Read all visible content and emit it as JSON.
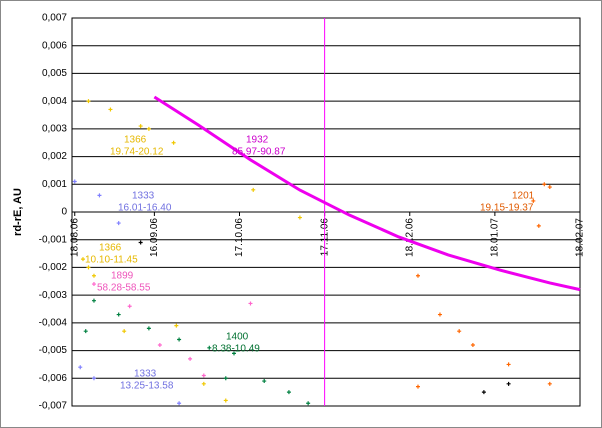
{
  "chart_data": {
    "type": "scatter",
    "y_label": "rd-rE, AU",
    "ylim": [
      -0.007,
      0.007
    ],
    "yticks": [
      {
        "value": -0.007,
        "label": "-0,007"
      },
      {
        "value": -0.006,
        "label": "-0,006"
      },
      {
        "value": -0.005,
        "label": "-0,005"
      },
      {
        "value": -0.004,
        "label": "-0,004"
      },
      {
        "value": -0.003,
        "label": "-0,003"
      },
      {
        "value": -0.002,
        "label": "-0,002"
      },
      {
        "value": -0.001,
        "label": "-0,001"
      },
      0,
      {
        "value": 0.001,
        "label": "0,001"
      },
      {
        "value": 0.002,
        "label": "0,002"
      },
      {
        "value": 0.003,
        "label": "0,003"
      },
      {
        "value": 0.004,
        "label": "0,004"
      },
      {
        "value": 0.005,
        "label": "0,005"
      },
      {
        "value": 0.006,
        "label": "0,006"
      },
      {
        "value": 0.007,
        "label": "0,007"
      }
    ],
    "xlim": [
      "2006-08-17",
      "2007-02-18"
    ],
    "xticks": [
      {
        "value": "2006-08-18",
        "label": "18.08.06"
      },
      {
        "value": "2006-09-16",
        "label": "16.09.06"
      },
      {
        "value": "2006-10-17",
        "label": "17.10.06"
      },
      {
        "value": "2006-11-17",
        "label": "17.11.06"
      },
      {
        "value": "2006-12-18",
        "label": "18.12.06"
      },
      {
        "value": "2007-01-18",
        "label": "18.01.07"
      },
      {
        "value": "2007-02-18",
        "label": "18.02.07"
      }
    ],
    "grid": true,
    "vline": {
      "x": "2006-11-17",
      "color": "#ff00ff"
    },
    "series": [
      {
        "color": "#ee00ee",
        "mode": "line",
        "x": [
          "2006-09-16",
          "2006-10-02",
          "2006-10-21",
          "2006-11-08",
          "2006-11-26",
          "2006-12-14",
          "2007-01-01",
          "2007-01-20",
          "2007-02-07",
          "2007-02-18"
        ],
        "y": [
          0.00415,
          0.00314,
          0.00188,
          0.00079,
          -0.00011,
          -0.0009,
          -0.00155,
          -0.0021,
          -0.00256,
          -0.0028
        ]
      },
      {
        "color": "#f0c800",
        "mode": "points",
        "x": [
          "2006-08-23",
          "2006-08-31",
          "2006-09-11",
          "2006-09-14",
          "2006-09-23",
          "2006-08-21",
          "2006-08-23",
          "2006-08-25",
          "2006-09-05",
          "2006-09-24",
          "2006-10-04",
          "2006-10-12",
          "2006-11-08",
          "2006-10-22"
        ],
        "y": [
          0.004,
          0.0037,
          0.0031,
          0.003,
          0.0025,
          -0.0017,
          -0.002,
          -0.0023,
          -0.0043,
          -0.0041,
          -0.0062,
          -0.0068,
          -0.0002,
          0.0008
        ]
      },
      {
        "color": "#ff6600",
        "mode": "points",
        "x": [
          "2007-02-01",
          "2007-02-05",
          "2007-02-07",
          "2007-02-03",
          "2006-12-21",
          "2006-12-29",
          "2007-01-05",
          "2007-01-10",
          "2007-01-23",
          "2007-02-07",
          "2006-12-21"
        ],
        "y": [
          0.0004,
          0.001,
          0.0009,
          -0.0005,
          -0.0023,
          -0.0037,
          -0.0043,
          -0.0048,
          -0.0055,
          -0.0062,
          -0.0063
        ]
      },
      {
        "color": "#008040",
        "mode": "points",
        "x": [
          "2006-08-25",
          "2006-09-03",
          "2006-09-14",
          "2006-09-25",
          "2006-10-06",
          "2006-10-15",
          "2006-11-04",
          "2006-11-11",
          "2006-10-12",
          "2006-10-26",
          "2006-08-22"
        ],
        "y": [
          -0.0032,
          -0.0037,
          -0.0042,
          -0.0046,
          -0.0049,
          -0.0051,
          -0.0065,
          -0.0069,
          -0.006,
          -0.0061,
          -0.0043
        ]
      },
      {
        "color": "#ff66cc",
        "mode": "points",
        "x": [
          "2006-08-25",
          "2006-09-07",
          "2006-09-18",
          "2006-09-29",
          "2006-10-04",
          "2006-10-21"
        ],
        "y": [
          -0.0026,
          -0.0034,
          -0.0048,
          -0.0053,
          -0.0059,
          -0.0033
        ]
      },
      {
        "color": "#8080ff",
        "mode": "points",
        "x": [
          "2006-08-18",
          "2006-08-27",
          "2006-09-03",
          "2006-08-20",
          "2006-08-25",
          "2006-09-25"
        ],
        "y": [
          0.0011,
          0.0006,
          -0.0004,
          -0.0056,
          -0.006,
          -0.0069
        ]
      },
      {
        "color": "#000000",
        "mode": "points",
        "x": [
          "2006-09-11",
          "2007-01-14",
          "2007-01-23"
        ],
        "y": [
          -0.0011,
          -0.0065,
          -0.0062
        ]
      }
    ],
    "annotations": [
      {
        "lines": [
          "1366",
          "19.74-20.12"
        ],
        "color": "#e6b800"
      },
      {
        "lines": [
          "1932",
          "85.97-90.87"
        ],
        "color": "#cc00cc"
      },
      {
        "lines": [
          "1333",
          "16.01-16.40"
        ],
        "color": "#7070e0"
      },
      {
        "lines": [
          "1201",
          "19.15-19.37"
        ],
        "color": "#e05a00"
      },
      {
        "lines": [
          "1366",
          "10.10-11.45"
        ],
        "color": "#e6b800"
      },
      {
        "lines": [
          "1899",
          "58.28-58.55"
        ],
        "color": "#ee55bb"
      },
      {
        "lines": [
          "1400",
          "8.38-10.49"
        ],
        "color": "#007030"
      },
      {
        "lines": [
          "1333",
          "13.25-13.58"
        ],
        "color": "#7070e0"
      }
    ]
  }
}
